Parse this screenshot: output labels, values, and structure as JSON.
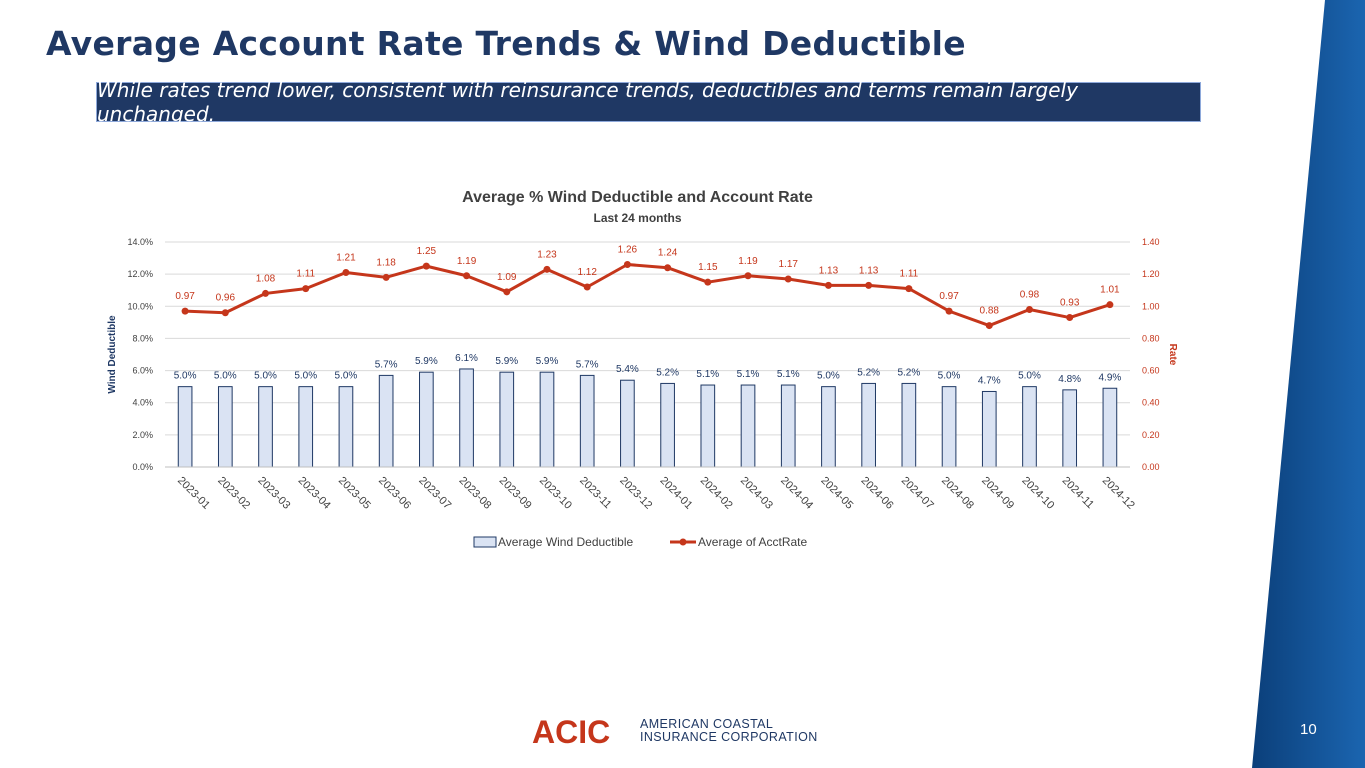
{
  "slide": {
    "title": "Average Account Rate Trends & Wind Deductible",
    "subtitle": "While rates trend lower, consistent with reinsurance trends, deductibles and terms remain largely unchanged.",
    "page_number": "10",
    "logo_mark": "ACIC",
    "logo_line1": "AMERICAN COASTAL",
    "logo_line2": "INSURANCE CORPORATION",
    "colors": {
      "title": "#1f3864",
      "band": "#0d4a8a",
      "bar_fill": "#dae3f3",
      "bar_stroke": "#1f3864",
      "line": "#c5361b",
      "logo_red": "#c5361b"
    }
  },
  "chart_data": {
    "type": "bar+line",
    "title": "Average % Wind Deductible and Account Rate",
    "subtitle": "Last 24 months",
    "categories": [
      "2023-01",
      "2023-02",
      "2023-03",
      "2023-04",
      "2023-05",
      "2023-06",
      "2023-07",
      "2023-08",
      "2023-09",
      "2023-10",
      "2023-11",
      "2023-12",
      "2024-01",
      "2024-02",
      "2024-03",
      "2024-04",
      "2024-05",
      "2024-06",
      "2024-07",
      "2024-08",
      "2024-09",
      "2024-10",
      "2024-11",
      "2024-12"
    ],
    "series": [
      {
        "name": "Average Wind Deductible",
        "type": "bar",
        "axis": "left",
        "values": [
          5.0,
          5.0,
          5.0,
          5.0,
          5.0,
          5.7,
          5.9,
          6.1,
          5.9,
          5.9,
          5.7,
          5.4,
          5.2,
          5.1,
          5.1,
          5.1,
          5.0,
          5.2,
          5.2,
          5.0,
          4.7,
          5.0,
          4.8,
          4.9
        ],
        "labels": [
          "5.0%",
          "5.0%",
          "5.0%",
          "5.0%",
          "5.0%",
          "5.7%",
          "5.9%",
          "6.1%",
          "5.9%",
          "5.9%",
          "5.7%",
          "5.4%",
          "5.2%",
          "5.1%",
          "5.1%",
          "5.1%",
          "5.0%",
          "5.2%",
          "5.2%",
          "5.0%",
          "4.7%",
          "5.0%",
          "4.8%",
          "4.9%"
        ]
      },
      {
        "name": "Average of AcctRate",
        "type": "line",
        "axis": "right",
        "values": [
          0.97,
          0.96,
          1.08,
          1.11,
          1.21,
          1.18,
          1.25,
          1.19,
          1.09,
          1.23,
          1.12,
          1.26,
          1.24,
          1.15,
          1.19,
          1.17,
          1.13,
          1.13,
          1.11,
          0.97,
          0.88,
          0.98,
          0.93,
          1.01
        ],
        "labels": [
          "0.97",
          "0.96",
          "1.08",
          "1.11",
          "1.21",
          "1.18",
          "1.25",
          "1.19",
          "1.09",
          "1.23",
          "1.12",
          "1.26",
          "1.24",
          "1.15",
          "1.19",
          "1.17",
          "1.13",
          "1.13",
          "1.11",
          "0.97",
          "0.88",
          "0.98",
          "0.93",
          "1.01"
        ]
      }
    ],
    "y_left": {
      "label": "Wind Deductible",
      "min": 0,
      "max": 14,
      "ticks": [
        0,
        2,
        4,
        6,
        8,
        10,
        12,
        14
      ],
      "tick_labels": [
        "0.0%",
        "2.0%",
        "4.0%",
        "6.0%",
        "8.0%",
        "10.0%",
        "12.0%",
        "14.0%"
      ]
    },
    "y_right": {
      "label": "Rate",
      "min": 0,
      "max": 1.4,
      "ticks": [
        0,
        0.2,
        0.4,
        0.6,
        0.8,
        1.0,
        1.2,
        1.4
      ],
      "tick_labels": [
        "0.00",
        "0.20",
        "0.40",
        "0.60",
        "0.80",
        "1.00",
        "1.20",
        "1.40"
      ]
    },
    "grid": true,
    "legend_position": "bottom"
  }
}
